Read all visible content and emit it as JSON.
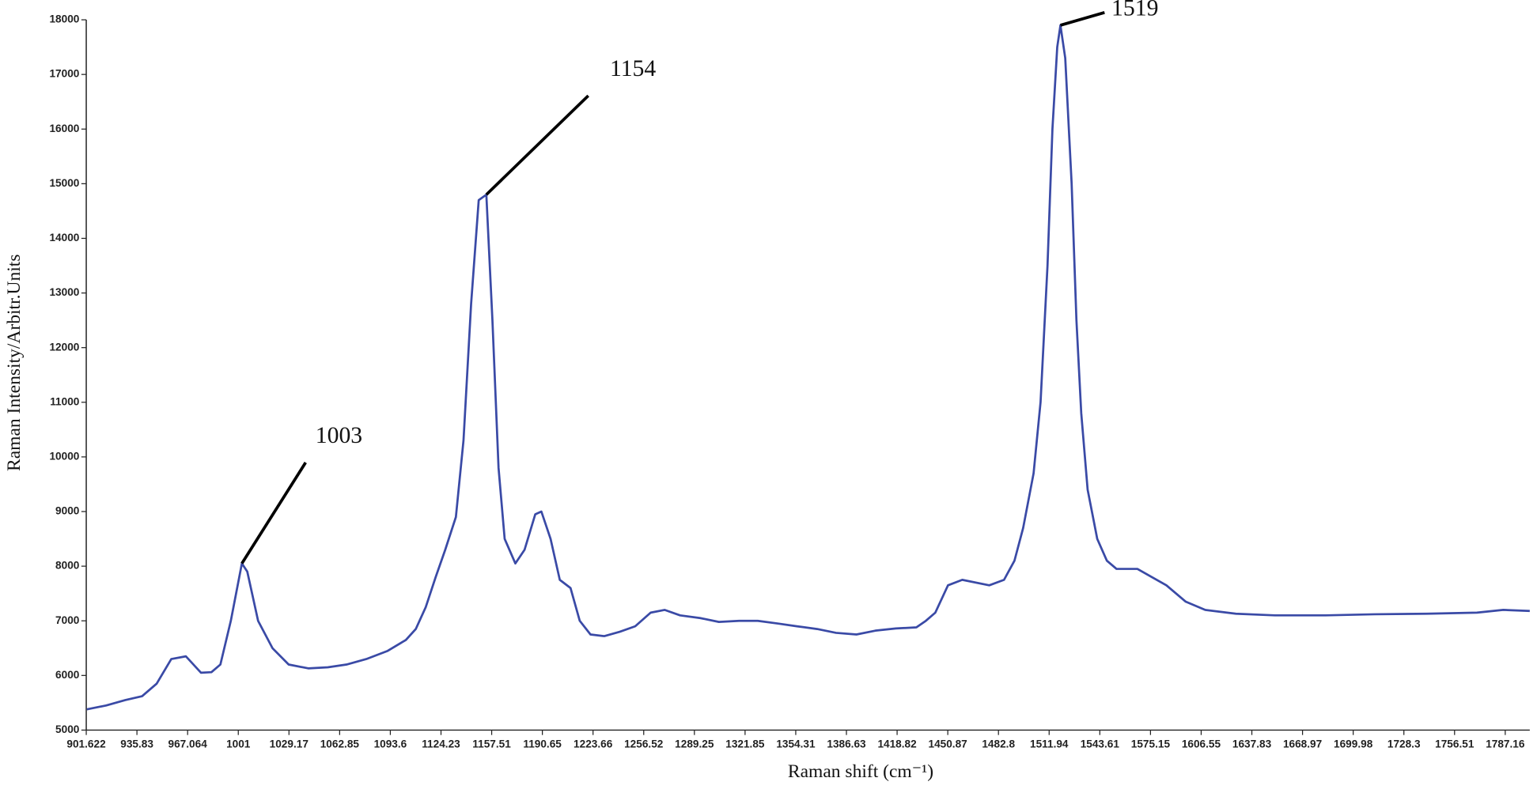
{
  "chart_data": {
    "type": "line",
    "xlabel": "Raman shift (cm⁻¹)",
    "ylabel": "Raman Intensity/Arbitr.Units",
    "xlim": [
      901.622,
      1802
    ],
    "ylim": [
      5000,
      18000
    ],
    "xticks": [
      901.622,
      935.83,
      967.064,
      1001,
      1029.17,
      1062.85,
      1093.6,
      1124.23,
      1157.51,
      1190.65,
      1223.66,
      1256.52,
      1289.25,
      1321.85,
      1354.31,
      1386.63,
      1418.82,
      1450.87,
      1482.8,
      1511.94,
      1543.61,
      1575.15,
      1606.55,
      1637.83,
      1668.97,
      1699.98,
      1728.3,
      1756.51,
      1787.16
    ],
    "yticks": [
      5000,
      6000,
      7000,
      8000,
      9000,
      10000,
      11000,
      12000,
      13000,
      14000,
      15000,
      16000,
      17000,
      18000
    ],
    "series": [
      {
        "color": "#3a4aa6",
        "x": [
          902,
          915,
          928,
          939,
          948,
          957,
          966,
          976,
          983,
          989,
          996,
          1003,
          1006,
          1012,
          1020,
          1029,
          1042,
          1055,
          1067,
          1079,
          1092,
          1103,
          1109,
          1115,
          1121,
          1127,
          1134,
          1139,
          1144,
          1149,
          1154,
          1158,
          1162,
          1166,
          1173,
          1179,
          1186,
          1190,
          1196,
          1202,
          1209,
          1215,
          1222,
          1231,
          1241,
          1251,
          1261,
          1270,
          1280,
          1293,
          1305,
          1318,
          1330,
          1343,
          1355,
          1368,
          1380,
          1393,
          1405,
          1418,
          1431,
          1437,
          1443,
          1451,
          1460,
          1477,
          1486,
          1492,
          1497,
          1503,
          1507,
          1511,
          1514,
          1517,
          1519,
          1522,
          1526,
          1529,
          1532,
          1536,
          1542,
          1548,
          1554,
          1567,
          1576,
          1585,
          1597,
          1609,
          1628,
          1652,
          1683,
          1712,
          1741,
          1770,
          1786,
          1802
        ],
        "values": [
          5380,
          5450,
          5550,
          5620,
          5850,
          6300,
          6350,
          6050,
          6060,
          6200,
          7000,
          8050,
          7900,
          7000,
          6500,
          6200,
          6130,
          6150,
          6200,
          6300,
          6450,
          6650,
          6850,
          7250,
          7800,
          8300,
          8900,
          10300,
          12800,
          14700,
          14800,
          12500,
          9800,
          8500,
          8050,
          8300,
          8950,
          9000,
          8500,
          7750,
          7600,
          7000,
          6750,
          6720,
          6800,
          6900,
          7150,
          7200,
          7100,
          7050,
          6980,
          7000,
          7000,
          6950,
          6900,
          6850,
          6780,
          6750,
          6820,
          6860,
          6880,
          7000,
          7150,
          7650,
          7750,
          7650,
          7750,
          8100,
          8700,
          9700,
          11000,
          13500,
          16000,
          17500,
          17900,
          17300,
          15000,
          12500,
          10800,
          9400,
          8500,
          8100,
          7950,
          7950,
          7800,
          7650,
          7350,
          7200,
          7130,
          7100,
          7100,
          7120,
          7130,
          7150,
          7200,
          7180
        ]
      }
    ],
    "annotations": [
      {
        "text": "1003",
        "x": 1003,
        "y": 8050
      },
      {
        "text": "1154",
        "x": 1154,
        "y": 14800
      },
      {
        "text": "1519",
        "x": 1519,
        "y": 17900
      }
    ]
  }
}
